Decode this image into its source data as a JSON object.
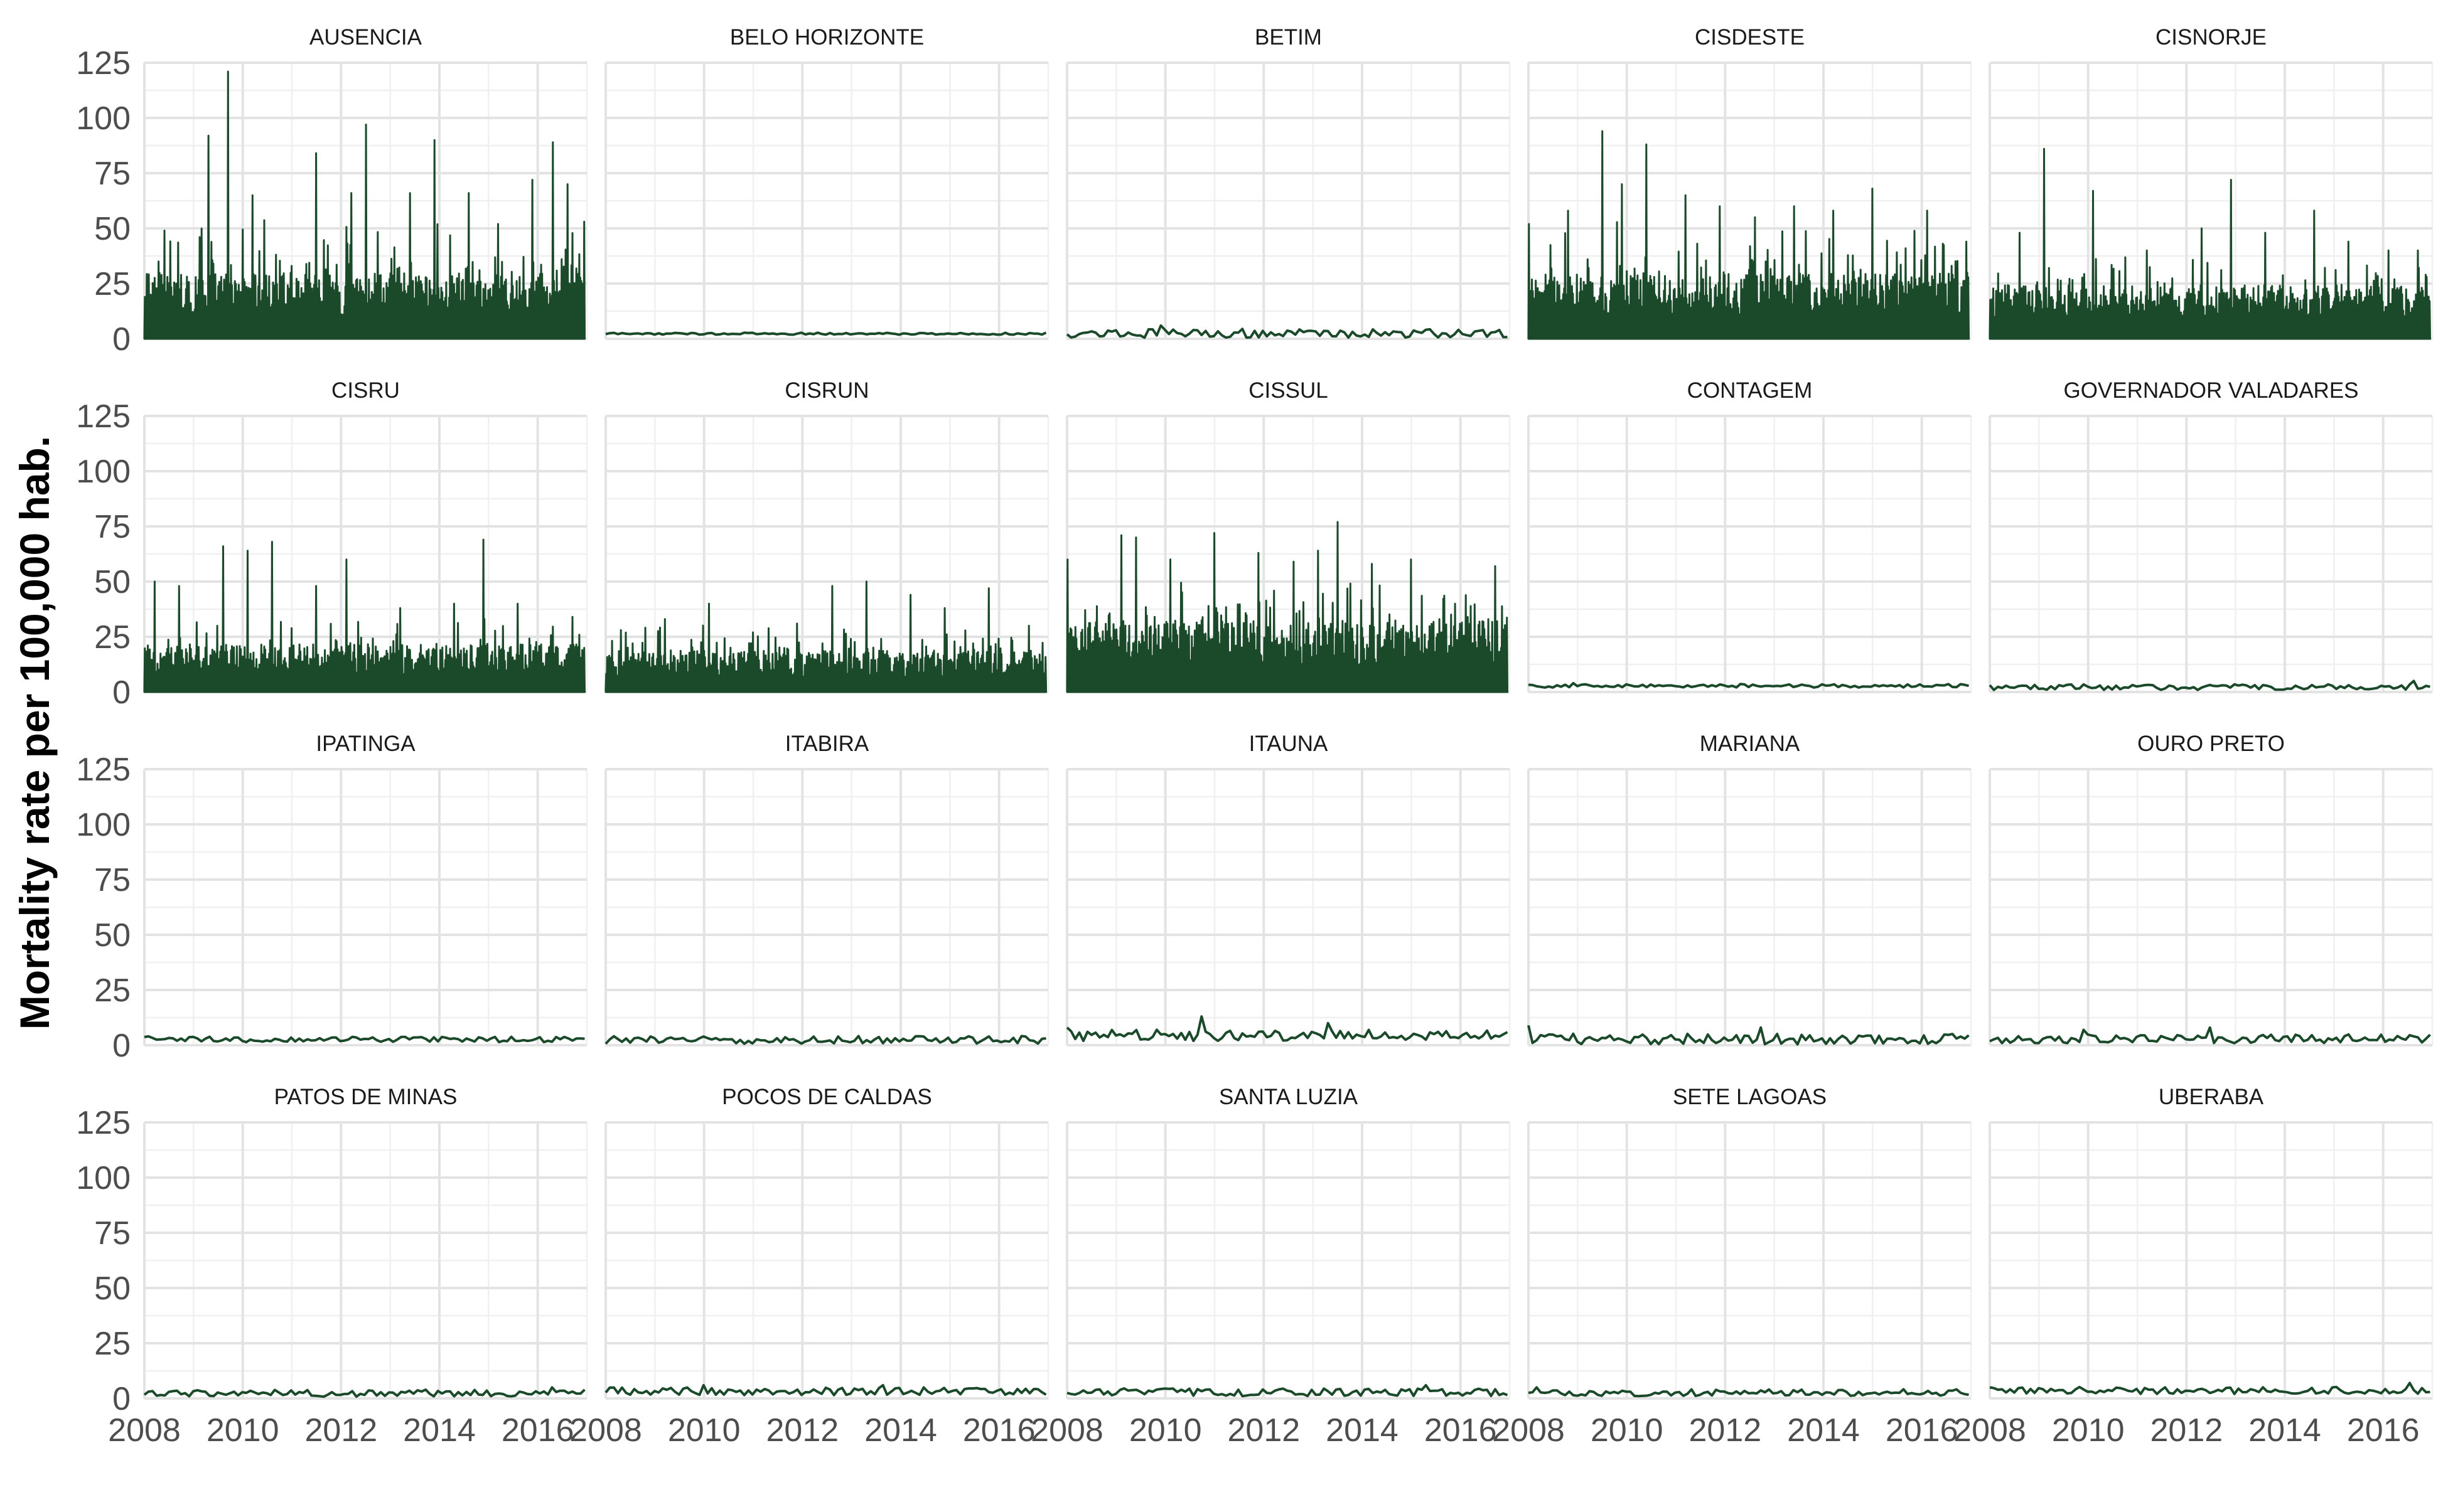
{
  "chart_data": {
    "type": "line",
    "ylabel": "Mortality rate per 100,000 hab.",
    "xlabel": "",
    "x_ticks": [
      "2008",
      "2010",
      "2012",
      "2014",
      "2016"
    ],
    "y_ticks": [
      "0",
      "25",
      "50",
      "75",
      "100",
      "125"
    ],
    "xlim": [
      2008.0,
      2017.0
    ],
    "ylim": [
      0,
      125
    ],
    "grid": true,
    "legend": "none",
    "line_color": "#1b4a2a",
    "layout": "facet grid 4 rows x 5 columns",
    "panels": [
      {
        "name": "AUSENCIA",
        "style": "dense",
        "base": 22,
        "high": 48,
        "spikes": [
          [
            2008.4,
            49
          ],
          [
            2009.3,
            92
          ],
          [
            2009.7,
            121
          ],
          [
            2010.2,
            65
          ],
          [
            2011.5,
            84
          ],
          [
            2012.2,
            66
          ],
          [
            2012.5,
            97
          ],
          [
            2013.4,
            66
          ],
          [
            2013.9,
            90
          ],
          [
            2014.6,
            66
          ],
          [
            2015.2,
            52
          ],
          [
            2015.9,
            72
          ],
          [
            2016.3,
            89
          ],
          [
            2016.6,
            70
          ],
          [
            2016.95,
            53
          ]
        ]
      },
      {
        "name": "BELO HORIZONTE",
        "style": "line",
        "base": 2.3,
        "noise": 0.6,
        "spikes": []
      },
      {
        "name": "BETIM",
        "style": "line",
        "base": 2.5,
        "noise": 2.5,
        "spikes": [
          [
            2009.9,
            6
          ]
        ]
      },
      {
        "name": "CISDESTE",
        "style": "dense",
        "base": 22,
        "high": 46,
        "spikes": [
          [
            2008.0,
            52
          ],
          [
            2008.8,
            58
          ],
          [
            2009.5,
            94
          ],
          [
            2009.9,
            70
          ],
          [
            2010.4,
            88
          ],
          [
            2011.2,
            65
          ],
          [
            2011.9,
            60
          ],
          [
            2012.6,
            55
          ],
          [
            2013.4,
            60
          ],
          [
            2014.2,
            58
          ],
          [
            2015.0,
            68
          ],
          [
            2016.1,
            58
          ],
          [
            2016.9,
            44
          ]
        ]
      },
      {
        "name": "CISNORJE",
        "style": "dense",
        "base": 18,
        "high": 36,
        "spikes": [
          [
            2008.1,
            10
          ],
          [
            2008.6,
            48
          ],
          [
            2009.1,
            86
          ],
          [
            2010.1,
            67
          ],
          [
            2011.2,
            40
          ],
          [
            2012.3,
            50
          ],
          [
            2012.9,
            72
          ],
          [
            2013.6,
            48
          ],
          [
            2014.6,
            58
          ],
          [
            2015.3,
            44
          ],
          [
            2016.1,
            40
          ],
          [
            2016.7,
            40
          ]
        ]
      },
      {
        "name": "CISRU",
        "style": "dense",
        "base": 16,
        "high": 30,
        "spikes": [
          [
            2008.2,
            50
          ],
          [
            2008.7,
            48
          ],
          [
            2009.6,
            66
          ],
          [
            2010.1,
            64
          ],
          [
            2010.6,
            68
          ],
          [
            2011.5,
            48
          ],
          [
            2012.1,
            60
          ],
          [
            2013.2,
            38
          ],
          [
            2014.3,
            40
          ],
          [
            2014.9,
            69
          ],
          [
            2015.6,
            40
          ],
          [
            2016.7,
            34
          ],
          [
            2016.95,
            20
          ]
        ]
      },
      {
        "name": "CISRUN",
        "style": "dense",
        "base": 14,
        "high": 26,
        "spikes": [
          [
            2008.3,
            28
          ],
          [
            2009.2,
            33
          ],
          [
            2010.1,
            40
          ],
          [
            2011.0,
            27
          ],
          [
            2011.9,
            31
          ],
          [
            2012.6,
            48
          ],
          [
            2013.3,
            50
          ],
          [
            2014.2,
            44
          ],
          [
            2014.9,
            38
          ],
          [
            2015.8,
            47
          ],
          [
            2016.6,
            30
          ]
        ]
      },
      {
        "name": "CISSUL",
        "style": "dense",
        "base": 24,
        "high": 45,
        "spikes": [
          [
            2008.0,
            60
          ],
          [
            2009.1,
            71
          ],
          [
            2009.4,
            70
          ],
          [
            2010.1,
            60
          ],
          [
            2011.0,
            72
          ],
          [
            2011.9,
            63
          ],
          [
            2012.6,
            59
          ],
          [
            2013.1,
            64
          ],
          [
            2013.5,
            77
          ],
          [
            2014.2,
            58
          ],
          [
            2015.0,
            60
          ],
          [
            2015.9,
            40
          ],
          [
            2016.7,
            57
          ]
        ]
      },
      {
        "name": "CONTAGEM",
        "style": "line",
        "base": 2.8,
        "noise": 1.0,
        "spikes": [
          [
            2008.9,
            4
          ]
        ]
      },
      {
        "name": "GOVERNADOR VALADARES",
        "style": "line",
        "base": 2.2,
        "noise": 1.6,
        "spikes": [
          [
            2016.6,
            5
          ]
        ]
      },
      {
        "name": "IPATINGA",
        "style": "line",
        "base": 2.6,
        "noise": 1.6,
        "spikes": [
          [
            2008.1,
            4
          ]
        ]
      },
      {
        "name": "ITABIRA",
        "style": "line",
        "base": 2.4,
        "noise": 2.2,
        "spikes": [
          [
            2015.8,
            4
          ]
        ]
      },
      {
        "name": "ITAUNA",
        "style": "line",
        "base": 4.5,
        "noise": 3.2,
        "spikes": [
          [
            2008.0,
            8
          ],
          [
            2010.7,
            13
          ],
          [
            2013.3,
            10
          ]
        ]
      },
      {
        "name": "MARIANA",
        "style": "line",
        "base": 2.8,
        "noise": 3.0,
        "spikes": [
          [
            2008.0,
            9
          ],
          [
            2012.7,
            8
          ]
        ]
      },
      {
        "name": "OURO PRETO",
        "style": "line",
        "base": 3.0,
        "noise": 2.6,
        "spikes": [
          [
            2009.9,
            7
          ],
          [
            2012.5,
            8
          ]
        ]
      },
      {
        "name": "PATOS DE MINAS",
        "style": "line",
        "base": 2.4,
        "noise": 2.0,
        "spikes": [
          [
            2016.3,
            5
          ]
        ]
      },
      {
        "name": "POCOS DE CALDAS",
        "style": "line",
        "base": 3.2,
        "noise": 2.2,
        "spikes": [
          [
            2010.0,
            6
          ],
          [
            2013.6,
            6
          ]
        ]
      },
      {
        "name": "SANTA LUZIA",
        "style": "line",
        "base": 2.8,
        "noise": 2.2,
        "spikes": [
          [
            2015.3,
            6
          ]
        ]
      },
      {
        "name": "SETE LAGOAS",
        "style": "line",
        "base": 2.6,
        "noise": 2.0,
        "spikes": [
          [
            2008.2,
            5
          ]
        ]
      },
      {
        "name": "UBERABA",
        "style": "line",
        "base": 3.6,
        "noise": 2.0,
        "spikes": [
          [
            2008.0,
            5
          ],
          [
            2016.5,
            7
          ]
        ]
      }
    ]
  }
}
